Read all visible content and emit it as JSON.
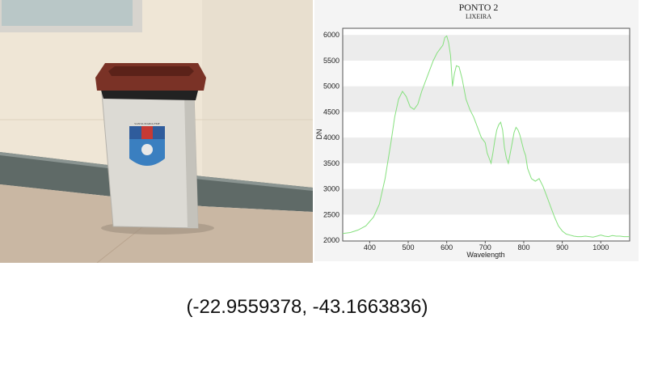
{
  "caption": {
    "coordinates": "(-22.9559378, -43.1663836)"
  },
  "photo": {
    "bin_emblem_text": "SANTA MARIA  FMF"
  },
  "colors": {
    "line": "#86e07e",
    "band": "#ececec",
    "background": "#ffffff"
  },
  "chart_data": {
    "type": "line",
    "title": "PONTO 2",
    "subtitle": "LIXEIRA",
    "xlabel": "Wavelength",
    "ylabel": "DN",
    "xlim": [
      330,
      1075
    ],
    "ylim": [
      1985,
      6130
    ],
    "xticks": [
      400,
      500,
      600,
      700,
      800,
      900,
      1000
    ],
    "yticks": [
      2000,
      2500,
      3000,
      3500,
      4000,
      4500,
      5000,
      5500,
      6000
    ],
    "grid": "alternating horizontal bands",
    "series": [
      {
        "x": [
          330,
          350,
          370,
          390,
          410,
          425,
          440,
          455,
          465,
          475,
          485,
          495,
          505,
          515,
          525,
          535,
          545,
          555,
          565,
          575,
          585,
          590,
          595,
          600,
          605,
          610,
          615,
          620,
          625,
          632,
          640,
          650,
          660,
          670,
          680,
          690,
          700,
          705,
          710,
          715,
          720,
          725,
          730,
          735,
          740,
          745,
          750,
          755,
          760,
          765,
          770,
          775,
          780,
          785,
          790,
          795,
          800,
          805,
          810,
          820,
          830,
          840,
          850,
          860,
          870,
          880,
          890,
          900,
          910,
          920,
          930,
          940,
          950,
          960,
          970,
          980,
          990,
          1000,
          1010,
          1020,
          1030,
          1040,
          1050,
          1060,
          1075
        ],
        "values": [
          2130,
          2150,
          2200,
          2280,
          2450,
          2700,
          3200,
          3900,
          4400,
          4750,
          4900,
          4800,
          4600,
          4550,
          4650,
          4900,
          5100,
          5300,
          5500,
          5650,
          5750,
          5800,
          5950,
          5980,
          5850,
          5600,
          5000,
          5250,
          5400,
          5380,
          5150,
          4750,
          4550,
          4400,
          4200,
          4000,
          3900,
          3700,
          3600,
          3500,
          3700,
          3950,
          4150,
          4250,
          4300,
          4150,
          3800,
          3600,
          3500,
          3700,
          3900,
          4100,
          4200,
          4150,
          4050,
          3900,
          3750,
          3650,
          3400,
          3200,
          3150,
          3200,
          3050,
          2850,
          2650,
          2450,
          2280,
          2180,
          2120,
          2100,
          2080,
          2070,
          2070,
          2080,
          2070,
          2060,
          2080,
          2100,
          2080,
          2070,
          2090,
          2080,
          2080,
          2070,
          2070
        ]
      }
    ]
  }
}
